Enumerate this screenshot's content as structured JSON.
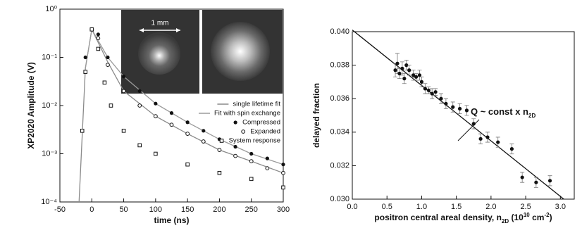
{
  "chart_data": [
    {
      "type": "line",
      "y_label": "XP2020 Amplitude (V)",
      "x_label": [
        "time (ns)"
      ],
      "annotation": "1 mm",
      "log_y": true,
      "xlim": [
        -50,
        300
      ],
      "xticks": [
        -50,
        0,
        50,
        100,
        150,
        200,
        250,
        300
      ],
      "ylim": [
        0.0001,
        1
      ],
      "yticks": [
        {
          "value": 0.0001,
          "label": "10⁻⁴"
        },
        {
          "value": 0.001,
          "label": "10⁻³"
        },
        {
          "value": 0.01,
          "label": "10⁻²"
        },
        {
          "value": 0.1,
          "label": "10⁻¹"
        },
        {
          "value": 1,
          "label": "10⁰"
        }
      ],
      "series": [
        {
          "name": "single lifetime fit",
          "color": "#8a8a8a",
          "marker": "line",
          "x": [
            -20,
            -10,
            0,
            25,
            50,
            100,
            150,
            200,
            250,
            300
          ],
          "values": [
            0.0001,
            0.06,
            0.38,
            0.08,
            0.02,
            0.006,
            0.0026,
            0.0012,
            0.0007,
            0.0004
          ]
        },
        {
          "name": "Fit with spin exchange",
          "color": "#9a9a9a",
          "marker": "line",
          "x": [
            -10,
            0,
            25,
            50,
            100,
            150,
            200,
            250,
            300
          ],
          "values": [
            0.06,
            0.38,
            0.1,
            0.04,
            0.011,
            0.0045,
            0.002,
            0.001,
            0.0006
          ]
        },
        {
          "name": "Compressed",
          "color": "#111111",
          "marker": "filled-circle",
          "x": [
            -10,
            0,
            10,
            25,
            50,
            75,
            100,
            125,
            150,
            175,
            200,
            225,
            250,
            275,
            300
          ],
          "values": [
            0.1,
            0.38,
            0.3,
            0.1,
            0.04,
            0.02,
            0.011,
            0.007,
            0.0045,
            0.003,
            0.002,
            0.0014,
            0.001,
            0.0008,
            0.0006
          ]
        },
        {
          "name": "Expanded",
          "color": "#111111",
          "marker": "open-circle",
          "x": [
            0,
            10,
            25,
            50,
            75,
            100,
            125,
            150,
            175,
            200,
            225,
            250,
            275,
            300
          ],
          "values": [
            0.38,
            0.25,
            0.07,
            0.02,
            0.01,
            0.006,
            0.004,
            0.0026,
            0.0018,
            0.0012,
            0.0009,
            0.0007,
            0.0005,
            0.0004
          ]
        },
        {
          "name": "System response",
          "color": "#111111",
          "marker": "open-square",
          "x": [
            -15,
            -10,
            0,
            10,
            20,
            30,
            50,
            75,
            100,
            150,
            200,
            250,
            300
          ],
          "values": [
            0.003,
            0.05,
            0.38,
            0.15,
            0.03,
            0.01,
            0.003,
            0.0015,
            0.001,
            0.0006,
            0.0004,
            0.0003,
            0.0002
          ]
        }
      ]
    },
    {
      "type": "scatter",
      "y_label": "delayed fraction",
      "x_label": [
        "positron central areal density, n",
        "2D",
        " (10",
        "10",
        " cm",
        "-2",
        ")"
      ],
      "annotation": [
        "Q ~ const x n",
        "2D"
      ],
      "xlim": [
        0,
        3.2
      ],
      "xticks": [
        {
          "value": 0,
          "label": "0.0"
        },
        0.5,
        {
          "value": 1,
          "label": "1.0"
        },
        1.5,
        {
          "value": 2,
          "label": "2.0"
        },
        2.5,
        {
          "value": 3,
          "label": "3.0"
        }
      ],
      "ylim": [
        0.03,
        0.04
      ],
      "yticks": [
        {
          "value": 0.03,
          "label": "0.030"
        },
        0.032,
        0.034,
        0.036,
        0.038,
        {
          "value": 0.04,
          "label": "0.040"
        }
      ],
      "fit_line": {
        "x": [
          0,
          3.05
        ],
        "values": [
          0.0401,
          0.03
        ]
      },
      "color": "#111111",
      "x": [
        0.62,
        0.65,
        0.68,
        0.72,
        0.75,
        0.78,
        0.82,
        0.88,
        0.92,
        0.97,
        1.0,
        1.05,
        1.1,
        1.15,
        1.2,
        1.28,
        1.35,
        1.45,
        1.55,
        1.65,
        1.75,
        1.85,
        1.95,
        2.1,
        2.3,
        2.45,
        2.65,
        2.85
      ],
      "values": [
        0.0377,
        0.0381,
        0.0375,
        0.0378,
        0.0372,
        0.038,
        0.0377,
        0.0374,
        0.0373,
        0.0374,
        0.037,
        0.0366,
        0.0365,
        0.0363,
        0.0364,
        0.036,
        0.0357,
        0.0355,
        0.0354,
        0.0353,
        0.0345,
        0.0336,
        0.0337,
        0.0334,
        0.033,
        0.0313,
        0.031,
        0.0311
      ],
      "errors": [
        0.0004,
        0.0006,
        0.0003,
        0.0004,
        0.0003,
        0.0003,
        0.0003,
        0.0003,
        0.0002,
        0.0003,
        0.0003,
        0.0003,
        0.0002,
        0.0003,
        0.0002,
        0.0003,
        0.0003,
        0.0003,
        0.0003,
        0.0003,
        0.0003,
        0.0003,
        0.0003,
        0.0003,
        0.0003,
        0.0003,
        0.0003,
        0.0003
      ]
    }
  ]
}
